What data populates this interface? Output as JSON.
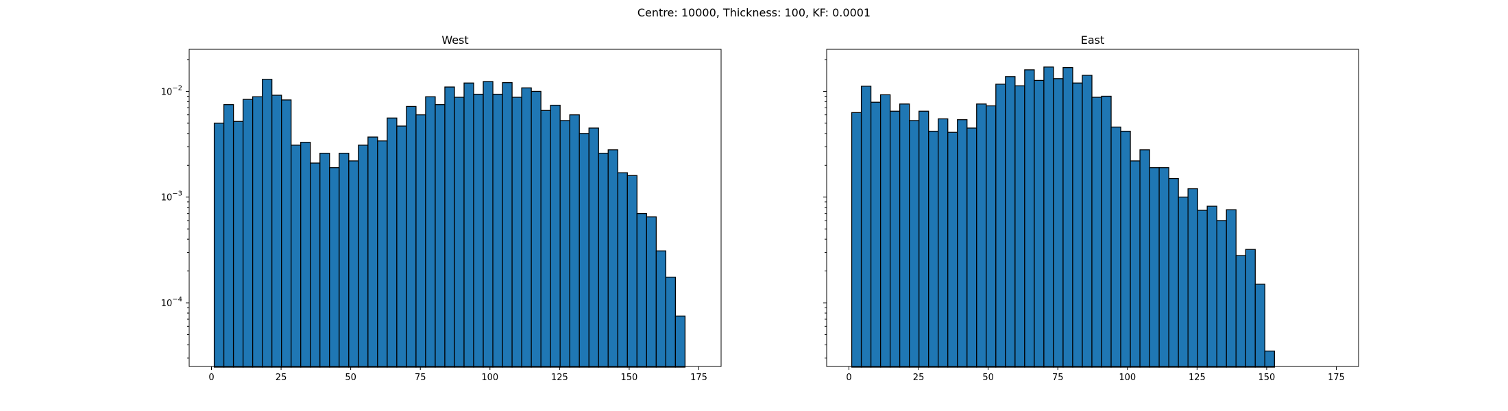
{
  "figure": {
    "suptitle": "Centre: 10000, Thickness: 100, KF: 0.0001"
  },
  "chart_data": [
    {
      "type": "bar",
      "title": "West",
      "xlabel": "",
      "ylabel": "",
      "yscale": "log",
      "ylim": [
        2.5e-05,
        0.025
      ],
      "xlim": [
        -8,
        183
      ],
      "xticks": [
        0,
        25,
        50,
        75,
        100,
        125,
        150,
        175
      ],
      "yticks": [
        {
          "value": 0.0001,
          "mantissa": "10",
          "exponent": "−4"
        },
        {
          "value": 0.001,
          "mantissa": "10",
          "exponent": "−3"
        },
        {
          "value": 0.01,
          "mantissa": "10",
          "exponent": "−2"
        }
      ],
      "bin_start": 1,
      "bin_width": 3.45,
      "values": [
        0.005,
        0.0075,
        0.0052,
        0.0084,
        0.0089,
        0.013,
        0.0092,
        0.0083,
        0.0031,
        0.0033,
        0.0021,
        0.0026,
        0.0019,
        0.0026,
        0.0022,
        0.0031,
        0.0037,
        0.0034,
        0.0056,
        0.0047,
        0.0072,
        0.006,
        0.0089,
        0.0075,
        0.011,
        0.0088,
        0.012,
        0.0094,
        0.0124,
        0.0094,
        0.0121,
        0.0088,
        0.0108,
        0.01,
        0.0066,
        0.0074,
        0.0053,
        0.006,
        0.004,
        0.0045,
        0.0026,
        0.0028,
        0.0017,
        0.0016,
        0.0007,
        0.00065,
        0.00031,
        0.000175,
        7.5e-05
      ],
      "grid": false,
      "legend": "none"
    },
    {
      "type": "bar",
      "title": "East",
      "xlabel": "",
      "ylabel": "",
      "yscale": "log",
      "ylim": [
        2.5e-05,
        0.025
      ],
      "xlim": [
        -8,
        183
      ],
      "xticks": [
        0,
        25,
        50,
        75,
        100,
        125,
        150,
        175
      ],
      "yticks": [],
      "bin_start": 1,
      "bin_width": 3.45,
      "values": [
        0.0063,
        0.0112,
        0.0079,
        0.0093,
        0.0065,
        0.0076,
        0.0053,
        0.0065,
        0.0042,
        0.0055,
        0.0041,
        0.0054,
        0.0045,
        0.0076,
        0.0073,
        0.0117,
        0.0138,
        0.0113,
        0.016,
        0.0127,
        0.017,
        0.0132,
        0.0168,
        0.012,
        0.0142,
        0.0088,
        0.009,
        0.0046,
        0.0042,
        0.0022,
        0.0028,
        0.0019,
        0.0019,
        0.0015,
        0.001,
        0.0012,
        0.00075,
        0.00082,
        0.0006,
        0.00076,
        0.00028,
        0.00032,
        0.00015,
        3.5e-05
      ],
      "grid": false,
      "legend": "none"
    }
  ]
}
